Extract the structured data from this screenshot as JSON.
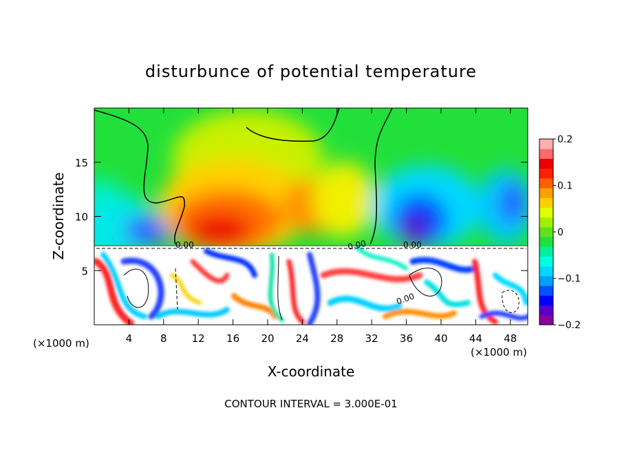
{
  "chart_data": {
    "type": "heatmap",
    "title": "disturbunce of potential temperature",
    "xlabel": "X-coordinate",
    "ylabel": "Z-coordinate",
    "x_unit_left": "(×1000 m)",
    "x_unit_right": "(×1000 m)",
    "xlim": [
      0,
      50
    ],
    "ylim": [
      0,
      20
    ],
    "x_ticks": [
      4,
      8,
      12,
      16,
      20,
      24,
      28,
      32,
      36,
      40,
      44,
      48
    ],
    "y_ticks": [
      5,
      10,
      15
    ],
    "x_tick_labels": [
      "4",
      "8",
      "12",
      "16",
      "20",
      "24",
      "28",
      "32",
      "36",
      "40",
      "44",
      "48"
    ],
    "y_tick_labels": [
      "5",
      "10",
      "15"
    ],
    "colorbar": {
      "range": [
        -0.2,
        0.2
      ],
      "ticks": [
        0.2,
        0.1,
        0,
        -0.1,
        -0.2
      ],
      "tick_labels": [
        "0.2",
        "0.1",
        "0",
        "−0.1",
        "−0.2"
      ],
      "colors": [
        "#8a00a0",
        "#5a00c8",
        "#0000ff",
        "#0050ff",
        "#00a0ff",
        "#00d8ff",
        "#00ffe0",
        "#00f0a0",
        "#20e040",
        "#60e020",
        "#a0f000",
        "#e0ff00",
        "#ffd000",
        "#ffa000",
        "#ff6000",
        "#ff2000",
        "#ee0000",
        "#ff6a6a",
        "#ffb0b0"
      ]
    },
    "contour_interval_text": "CONTOUR INTERVAL = 3.000E-01",
    "contour_zero_label": "0.00"
  }
}
